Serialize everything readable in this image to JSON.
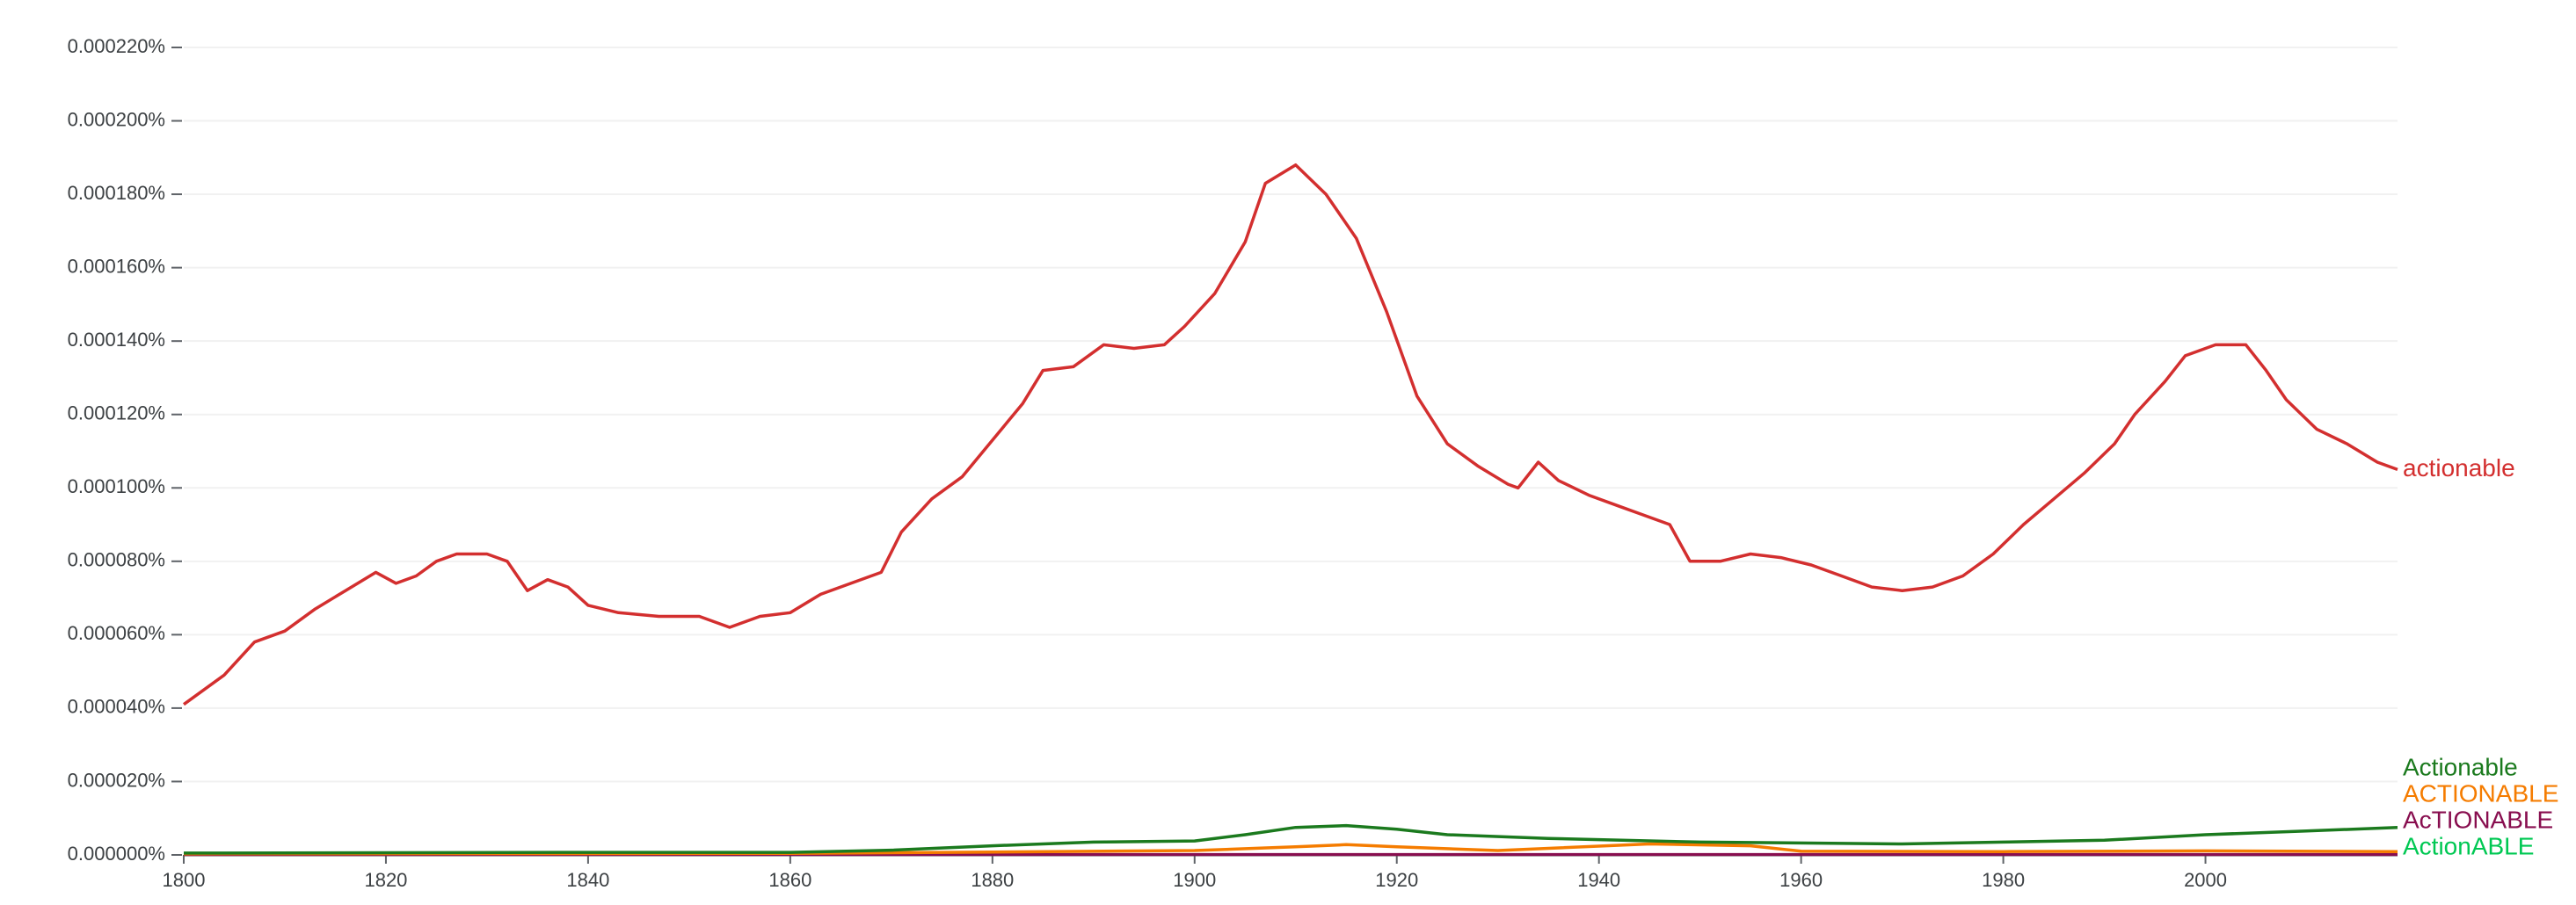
{
  "chart_data": {
    "type": "line",
    "xlim": [
      1800,
      2019
    ],
    "xticks": [
      1800,
      1820,
      1840,
      1860,
      1880,
      1900,
      1920,
      1940,
      1960,
      1980,
      2000
    ],
    "ylim": [
      0,
      0.00022
    ],
    "yticks": [
      {
        "value": 0,
        "label": "0.000000%"
      },
      {
        "value": 2e-05,
        "label": "0.000020%"
      },
      {
        "value": 4e-05,
        "label": "0.000040%"
      },
      {
        "value": 6e-05,
        "label": "0.000060%"
      },
      {
        "value": 8e-05,
        "label": "0.000080%"
      },
      {
        "value": 0.0001,
        "label": "0.000100%"
      },
      {
        "value": 0.00012,
        "label": "0.000120%"
      },
      {
        "value": 0.00014,
        "label": "0.000140%"
      },
      {
        "value": 0.00016,
        "label": "0.000160%"
      },
      {
        "value": 0.00018,
        "label": "0.000180%"
      },
      {
        "value": 0.0002,
        "label": "0.000200%"
      },
      {
        "value": 0.00022,
        "label": "0.000220%"
      }
    ],
    "grid": true,
    "series": [
      {
        "name": "actionable",
        "color": "#d32f2f",
        "x": [
          1800,
          1804,
          1807,
          1810,
          1813,
          1816,
          1819,
          1821,
          1823,
          1825,
          1827,
          1830,
          1832,
          1834,
          1836,
          1838,
          1840,
          1843,
          1847,
          1851,
          1854,
          1857,
          1860,
          1863,
          1866,
          1869,
          1871,
          1874,
          1877,
          1880,
          1883,
          1885,
          1888,
          1891,
          1894,
          1897,
          1899,
          1902,
          1905,
          1907,
          1910,
          1913,
          1916,
          1919,
          1922,
          1925,
          1928,
          1931,
          1932,
          1934,
          1936,
          1939,
          1942,
          1944,
          1947,
          1949,
          1952,
          1955,
          1958,
          1961,
          1964,
          1967,
          1970,
          1973,
          1976,
          1979,
          1982,
          1985,
          1988,
          1991,
          1993,
          1996,
          1998,
          2001,
          2004,
          2006,
          2008,
          2011,
          2014,
          2017,
          2019
        ],
        "values": [
          4.1e-05,
          4.9e-05,
          5.8e-05,
          6.1e-05,
          6.7e-05,
          7.2e-05,
          7.7e-05,
          7.4e-05,
          7.6e-05,
          8e-05,
          8.2e-05,
          8.2e-05,
          8e-05,
          7.2e-05,
          7.5e-05,
          7.3e-05,
          6.8e-05,
          6.6e-05,
          6.5e-05,
          6.5e-05,
          6.2e-05,
          6.5e-05,
          6.6e-05,
          7.1e-05,
          7.4e-05,
          7.7e-05,
          8.8e-05,
          9.7e-05,
          0.000103,
          0.000113,
          0.000123,
          0.000132,
          0.000133,
          0.000139,
          0.000138,
          0.000139,
          0.000144,
          0.000153,
          0.000167,
          0.000183,
          0.000188,
          0.00018,
          0.000168,
          0.000148,
          0.000125,
          0.000112,
          0.000106,
          0.000101,
          0.0001,
          0.000107,
          0.000102,
          9.8e-05,
          9.5e-05,
          9.3e-05,
          9e-05,
          8e-05,
          8e-05,
          8.2e-05,
          8.1e-05,
          7.9e-05,
          7.6e-05,
          7.3e-05,
          7.2e-05,
          7.3e-05,
          7.6e-05,
          8.2e-05,
          9e-05,
          9.7e-05,
          0.000104,
          0.000112,
          0.00012,
          0.000129,
          0.000136,
          0.000139,
          0.000139,
          0.000132,
          0.000124,
          0.000116,
          0.000112,
          0.000107,
          0.000105
        ]
      },
      {
        "name": "Actionable",
        "color": "#1b7a1e",
        "x": [
          1800,
          1820,
          1840,
          1860,
          1870,
          1880,
          1885,
          1890,
          1900,
          1905,
          1910,
          1915,
          1920,
          1925,
          1935,
          1950,
          1970,
          1980,
          1990,
          2000,
          2010,
          2019
        ],
        "values": [
          5e-07,
          6e-07,
          7e-07,
          7e-07,
          1.3e-06,
          2.5e-06,
          3e-06,
          3.5e-06,
          3.8e-06,
          5.5e-06,
          7.5e-06,
          8e-06,
          7e-06,
          5.5e-06,
          4.5e-06,
          3.5e-06,
          3e-06,
          3.5e-06,
          4e-06,
          5.5e-06,
          6.5e-06,
          7.5e-06
        ]
      },
      {
        "name": "ACTIONABLE",
        "color": "#f57c00",
        "x": [
          1800,
          1860,
          1880,
          1900,
          1910,
          1915,
          1920,
          1930,
          1945,
          1955,
          1960,
          1980,
          2000,
          2019
        ],
        "values": [
          3e-07,
          4e-07,
          8e-07,
          1.2e-06,
          2.2e-06,
          2.8e-06,
          2.2e-06,
          1.2e-06,
          3e-06,
          2.5e-06,
          1e-06,
          9e-07,
          1.1e-06,
          9e-07
        ]
      },
      {
        "name": "AcTIONABLE",
        "color": "#880e4f",
        "x": [
          1800,
          1900,
          2019
        ],
        "values": [
          1e-07,
          1e-07,
          1e-07
        ]
      },
      {
        "name": "ActionABLE",
        "color": "#00c853",
        "x": [
          1800,
          1900,
          2019
        ],
        "values": [
          5e-08,
          5e-08,
          5e-08
        ]
      }
    ]
  }
}
